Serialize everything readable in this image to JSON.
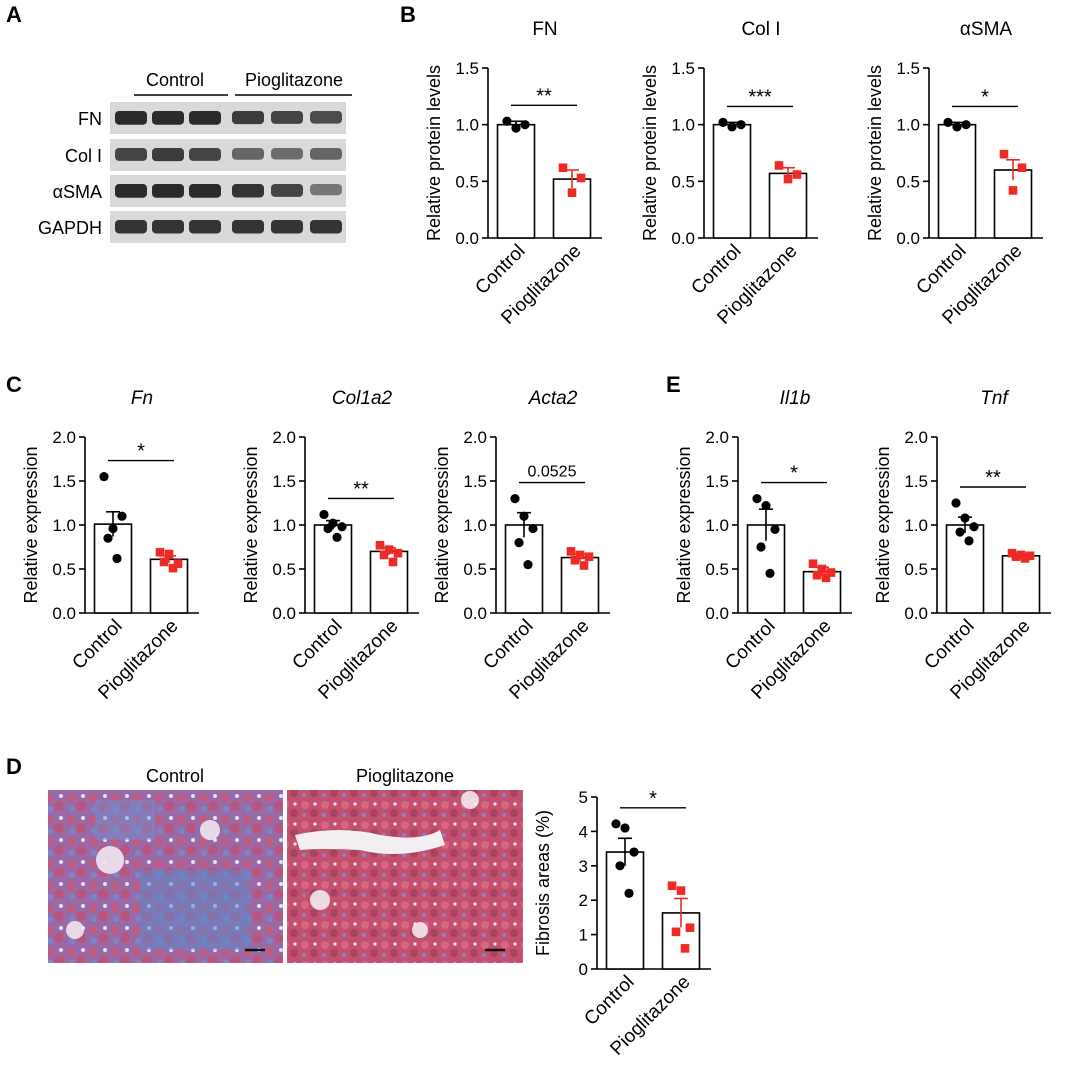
{
  "panel_labels": [
    "A",
    "B",
    "C",
    "E",
    "D"
  ],
  "blot": {
    "groups": [
      "Control",
      "Pioglitazone"
    ],
    "rows": [
      {
        "label": "FN",
        "intensity": [
          0.95,
          0.95,
          0.95,
          0.85,
          0.8,
          0.75
        ]
      },
      {
        "label": "Col I",
        "intensity": [
          0.8,
          0.85,
          0.8,
          0.6,
          0.55,
          0.6
        ]
      },
      {
        "label": "αSMA",
        "intensity": [
          0.95,
          0.95,
          0.95,
          0.9,
          0.8,
          0.5
        ]
      },
      {
        "label": "GAPDH",
        "intensity": [
          0.9,
          0.9,
          0.9,
          0.9,
          0.9,
          0.9
        ]
      }
    ]
  },
  "histology": {
    "labels": [
      "Control",
      "Pioglitazone"
    ]
  },
  "style": {
    "control_color": "#000000",
    "treat_color": "#ee2a24"
  },
  "chart_data": [
    {
      "panel": "B",
      "type": "bar",
      "title": "FN",
      "ylabel": "Relative protein levels",
      "ylim": [
        0,
        1.5
      ],
      "yticks": [
        "0.0",
        "0.5",
        "1.0",
        "1.5"
      ],
      "categories": [
        "Control",
        "Pioglitazone"
      ],
      "values": [
        1.0,
        0.52
      ],
      "errors": [
        0.03,
        0.08
      ],
      "points": [
        [
          1.03,
          0.97,
          1.0
        ],
        [
          0.62,
          0.4,
          0.53
        ]
      ],
      "sig": "**"
    },
    {
      "panel": "B",
      "type": "bar",
      "title": "Col I",
      "ylabel": "Relative protein levels",
      "ylim": [
        0,
        1.5
      ],
      "yticks": [
        "0.0",
        "0.5",
        "1.0",
        "1.5"
      ],
      "categories": [
        "Control",
        "Pioglitazone"
      ],
      "values": [
        1.0,
        0.57
      ],
      "errors": [
        0.02,
        0.05
      ],
      "points": [
        [
          1.02,
          0.98,
          1.0
        ],
        [
          0.64,
          0.52,
          0.56
        ]
      ],
      "sig": "***"
    },
    {
      "panel": "B",
      "type": "bar",
      "title": "αSMA",
      "ylabel": "Relative protein levels",
      "ylim": [
        0,
        1.5
      ],
      "yticks": [
        "0.0",
        "0.5",
        "1.0",
        "1.5"
      ],
      "categories": [
        "Control",
        "Pioglitazone"
      ],
      "values": [
        1.0,
        0.6
      ],
      "errors": [
        0.02,
        0.09
      ],
      "points": [
        [
          1.02,
          0.98,
          1.0
        ],
        [
          0.74,
          0.42,
          0.62
        ]
      ],
      "sig": "*"
    },
    {
      "panel": "C",
      "type": "bar",
      "title": "Fn",
      "italic": true,
      "ylabel": "Relative expression",
      "ylim": [
        0,
        2.0
      ],
      "yticks": [
        "0.0",
        "0.5",
        "1.0",
        "1.5",
        "2.0"
      ],
      "categories": [
        "Control",
        "Pioglitazone"
      ],
      "values": [
        1.01,
        0.61
      ],
      "errors": [
        0.14,
        0.04
      ],
      "points": [
        [
          1.55,
          0.96,
          1.1,
          0.85,
          0.62
        ],
        [
          0.69,
          0.67,
          0.56,
          0.58,
          0.51
        ]
      ],
      "sig": "*"
    },
    {
      "panel": "C",
      "type": "bar",
      "title": "Col1a2",
      "italic": true,
      "ylabel": "Relative expression",
      "ylim": [
        0,
        2.0
      ],
      "yticks": [
        "0.0",
        "0.5",
        "1.0",
        "1.5",
        "2.0"
      ],
      "categories": [
        "Control",
        "Pioglitazone"
      ],
      "values": [
        1.0,
        0.7
      ],
      "errors": [
        0.05,
        0.04
      ],
      "points": [
        [
          1.12,
          1.02,
          0.98,
          0.96,
          0.86
        ],
        [
          0.77,
          0.72,
          0.68,
          0.66,
          0.58
        ]
      ],
      "sig": "**"
    },
    {
      "panel": "C",
      "type": "bar",
      "title": "Acta2",
      "italic": true,
      "ylabel": "Relative expression",
      "ylim": [
        0,
        2.0
      ],
      "yticks": [
        "0.0",
        "0.5",
        "1.0",
        "1.5",
        "2.0"
      ],
      "categories": [
        "Control",
        "Pioglitazone"
      ],
      "values": [
        1.0,
        0.63
      ],
      "errors": [
        0.14,
        0.04
      ],
      "points": [
        [
          1.3,
          1.1,
          0.96,
          0.8,
          0.55
        ],
        [
          0.7,
          0.66,
          0.64,
          0.6,
          0.54
        ]
      ],
      "sig": "0.0525"
    },
    {
      "panel": "E",
      "type": "bar",
      "title": "Il1b",
      "italic": true,
      "ylabel": "Relative expression",
      "ylim": [
        0,
        2.0
      ],
      "yticks": [
        "0.0",
        "0.5",
        "1.0",
        "1.5",
        "2.0"
      ],
      "categories": [
        "Control",
        "Pioglitazone"
      ],
      "values": [
        1.0,
        0.47
      ],
      "errors": [
        0.18,
        0.05
      ],
      "points": [
        [
          1.3,
          1.22,
          0.95,
          0.75,
          0.45
        ],
        [
          0.56,
          0.5,
          0.46,
          0.43,
          0.4
        ]
      ],
      "sig": "*"
    },
    {
      "panel": "E",
      "type": "bar",
      "title": "Tnf",
      "italic": true,
      "ylabel": "Relative expression",
      "ylim": [
        0,
        2.0
      ],
      "yticks": [
        "0.0",
        "0.5",
        "1.0",
        "1.5",
        "2.0"
      ],
      "categories": [
        "Control",
        "Pioglitazone"
      ],
      "values": [
        1.0,
        0.65
      ],
      "errors": [
        0.09,
        0.02
      ],
      "points": [
        [
          1.25,
          1.08,
          0.98,
          0.92,
          0.82
        ],
        [
          0.68,
          0.66,
          0.65,
          0.64,
          0.62
        ]
      ],
      "sig": "**"
    },
    {
      "panel": "D",
      "type": "bar",
      "title": "",
      "ylabel": "Fibrosis areas (%)",
      "ylim": [
        0,
        5
      ],
      "yticks": [
        "0",
        "1",
        "2",
        "3",
        "4",
        "5"
      ],
      "categories": [
        "Control",
        "Pioglitazone"
      ],
      "values": [
        3.4,
        1.63
      ],
      "errors": [
        0.4,
        0.42
      ],
      "points": [
        [
          4.22,
          4.1,
          3.4,
          3.0,
          2.2
        ],
        [
          2.42,
          2.28,
          1.2,
          1.08,
          0.6
        ]
      ],
      "sig": "*"
    }
  ]
}
